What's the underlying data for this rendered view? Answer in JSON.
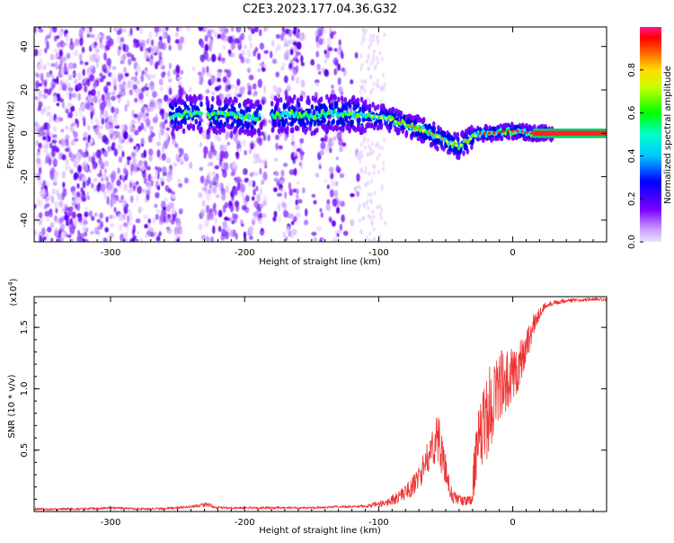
{
  "figure": {
    "title": "C2E3.2023.177.04.36.G32"
  },
  "chart_data": [
    {
      "type": "heatmap",
      "xlabel": "Height of straight line (km)",
      "ylabel": "Frequency (Hz)",
      "xlim": [
        -357,
        70
      ],
      "ylim": [
        -50,
        49
      ],
      "x_ticks": [
        -300,
        -200,
        -100,
        0
      ],
      "x_tick_labels": [
        "-300",
        "-200",
        "-100",
        "0"
      ],
      "y_ticks": [
        -40,
        -20,
        0,
        20,
        40
      ],
      "y_tick_labels": [
        "-40",
        "-20",
        "0",
        "20",
        "40"
      ],
      "colorbar": {
        "label": "Normalized spectral amplitude",
        "range": [
          0,
          1
        ],
        "ticks": [
          0.0,
          0.2,
          0.4,
          0.6,
          0.8
        ],
        "tick_labels": [
          "0.0",
          "0.2",
          "0.4",
          "0.6",
          "0.8"
        ],
        "colors": [
          "#e6ccff",
          "#6a00ff",
          "#0000ff",
          "#00e5ff",
          "#00ff00",
          "#ffff00",
          "#ff8000",
          "#ff0000",
          "#ff1493"
        ]
      },
      "ridge": {
        "x": [
          -255,
          -240,
          -225,
          -210,
          -195,
          -180,
          -165,
          -150,
          -135,
          -120,
          -105,
          -95,
          -85,
          -75,
          -65,
          -55,
          -45,
          -40,
          -35,
          -25,
          -15,
          -5,
          5,
          15,
          25,
          40,
          55,
          70
        ],
        "freq": [
          8,
          9,
          8,
          9,
          7,
          8,
          9,
          8,
          9,
          9,
          8,
          7,
          5,
          3,
          1,
          -2,
          -5,
          -6,
          -4,
          0,
          0,
          1,
          1,
          0,
          0,
          0,
          0,
          0
        ]
      },
      "noise_region_x": [
        -357,
        -115
      ],
      "grid": false
    },
    {
      "type": "line",
      "xlabel": "Height of straight line (km)",
      "ylabel": "SNR (10 * v/v)",
      "yscale_label": "(x10",
      "yscale_exp": "4",
      "yscale_close": ")",
      "xlim": [
        -357,
        70
      ],
      "ylim": [
        0,
        1.75
      ],
      "x_ticks": [
        -300,
        -200,
        -100,
        0
      ],
      "x_tick_labels": [
        "-300",
        "-200",
        "-100",
        "0"
      ],
      "y_ticks": [
        0.5,
        1.0,
        1.5
      ],
      "y_tick_labels": [
        "0.5",
        "1.0",
        "1.5"
      ],
      "series": [
        {
          "color": "#ee3333",
          "x": [
            -357,
            -330,
            -300,
            -270,
            -250,
            -240,
            -228,
            -222,
            -210,
            -190,
            -170,
            -150,
            -130,
            -115,
            -105,
            -95,
            -85,
            -75,
            -70,
            -65,
            -60,
            -57,
            -54,
            -50,
            -45,
            -40,
            -35,
            -31,
            -28,
            -25,
            -20,
            -15,
            -10,
            -5,
            0,
            5,
            10,
            15,
            20,
            25,
            30,
            40,
            50,
            60,
            70
          ],
          "y": [
            0.02,
            0.02,
            0.03,
            0.02,
            0.03,
            0.04,
            0.06,
            0.03,
            0.03,
            0.03,
            0.03,
            0.03,
            0.04,
            0.04,
            0.05,
            0.07,
            0.12,
            0.2,
            0.28,
            0.4,
            0.52,
            0.6,
            0.55,
            0.3,
            0.12,
            0.1,
            0.08,
            0.1,
            0.4,
            0.55,
            0.75,
            0.9,
            1.05,
            1.0,
            1.12,
            1.2,
            1.35,
            1.5,
            1.62,
            1.68,
            1.7,
            1.72,
            1.72,
            1.73,
            1.72
          ],
          "noise_amplitude": [
            0.01,
            0.01,
            0.01,
            0.01,
            0.01,
            0.01,
            0.02,
            0.01,
            0.01,
            0.01,
            0.01,
            0.01,
            0.01,
            0.01,
            0.02,
            0.03,
            0.05,
            0.08,
            0.1,
            0.12,
            0.15,
            0.2,
            0.2,
            0.15,
            0.06,
            0.04,
            0.04,
            0.05,
            0.25,
            0.3,
            0.35,
            0.35,
            0.3,
            0.3,
            0.25,
            0.2,
            0.15,
            0.1,
            0.05,
            0.03,
            0.02,
            0.02,
            0.015,
            0.015,
            0.015
          ]
        }
      ],
      "grid": false
    }
  ]
}
